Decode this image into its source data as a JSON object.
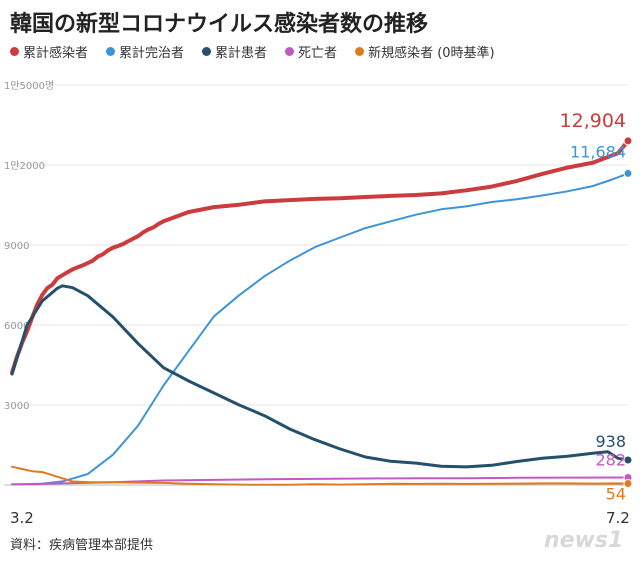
{
  "title": "韓国の新型コロナウイルス感染者数の推移",
  "legend": [
    {
      "label": "累計感染者",
      "color": "#cc3b3d"
    },
    {
      "label": "累計完治者",
      "color": "#3d95d6"
    },
    {
      "label": "累計患者",
      "color": "#24506b"
    },
    {
      "label": "死亡者",
      "color": "#c458c4"
    },
    {
      "label": "新規感染者 (0時基準)",
      "color": "#e07a1f"
    }
  ],
  "source": "資料：疾病管理本部提供",
  "watermark": "news1",
  "chart_data": {
    "type": "line",
    "x_start_label": "3.2",
    "x_end_label": "7.2",
    "ylim": [
      0,
      15000
    ],
    "y_ticks": [
      {
        "value": 15000,
        "label": "1만5000명"
      },
      {
        "value": 12000,
        "label": "1만2000"
      },
      {
        "value": 9000,
        "label": "9000"
      },
      {
        "value": 6000,
        "label": "6000"
      },
      {
        "value": 3000,
        "label": "3000"
      }
    ],
    "series": [
      {
        "name": "累計感染者",
        "color": "#cc3b3d",
        "width": 4,
        "end_label": "12,904",
        "points": [
          [
            0,
            4212
          ],
          [
            1,
            4812
          ],
          [
            2,
            5328
          ],
          [
            3,
            5766
          ],
          [
            4,
            6284
          ],
          [
            5,
            6767
          ],
          [
            6,
            7134
          ],
          [
            7,
            7382
          ],
          [
            8,
            7513
          ],
          [
            9,
            7755
          ],
          [
            10,
            7869
          ],
          [
            11,
            7979
          ],
          [
            12,
            8086
          ],
          [
            13,
            8162
          ],
          [
            14,
            8236
          ],
          [
            15,
            8320
          ],
          [
            16,
            8413
          ],
          [
            17,
            8565
          ],
          [
            18,
            8652
          ],
          [
            19,
            8799
          ],
          [
            20,
            8897
          ],
          [
            21,
            8961
          ],
          [
            22,
            9037
          ],
          [
            23,
            9137
          ],
          [
            24,
            9241
          ],
          [
            25,
            9332
          ],
          [
            26,
            9478
          ],
          [
            27,
            9583
          ],
          [
            28,
            9661
          ],
          [
            29,
            9786
          ],
          [
            30,
            9887
          ],
          [
            35,
            10237
          ],
          [
            40,
            10423
          ],
          [
            45,
            10512
          ],
          [
            50,
            10635
          ],
          [
            55,
            10683
          ],
          [
            60,
            10728
          ],
          [
            65,
            10752
          ],
          [
            70,
            10801
          ],
          [
            75,
            10840
          ],
          [
            80,
            10874
          ],
          [
            85,
            10936
          ],
          [
            90,
            11050
          ],
          [
            95,
            11190
          ],
          [
            100,
            11402
          ],
          [
            105,
            11668
          ],
          [
            110,
            11902
          ],
          [
            115,
            12085
          ],
          [
            120,
            12438
          ],
          [
            122,
            12904
          ]
        ]
      },
      {
        "name": "累計完治者",
        "color": "#3d95d6",
        "width": 2,
        "end_label": "11,684",
        "points": [
          [
            0,
            22
          ],
          [
            5,
            27
          ],
          [
            10,
            135
          ],
          [
            15,
            408
          ],
          [
            20,
            1137
          ],
          [
            25,
            2233
          ],
          [
            30,
            3730
          ],
          [
            35,
            5033
          ],
          [
            40,
            6325
          ],
          [
            45,
            7117
          ],
          [
            50,
            7829
          ],
          [
            55,
            8411
          ],
          [
            60,
            8922
          ],
          [
            65,
            9283
          ],
          [
            70,
            9632
          ],
          [
            75,
            9888
          ],
          [
            80,
            10135
          ],
          [
            85,
            10340
          ],
          [
            90,
            10446
          ],
          [
            95,
            10611
          ],
          [
            100,
            10718
          ],
          [
            105,
            10856
          ],
          [
            110,
            11012
          ],
          [
            115,
            11209
          ],
          [
            118,
            11400
          ],
          [
            120,
            11537
          ],
          [
            122,
            11684
          ]
        ]
      },
      {
        "name": "累計患者",
        "color": "#24506b",
        "width": 3,
        "end_label": "938",
        "points": [
          [
            0,
            4157
          ],
          [
            3,
            6000
          ],
          [
            6,
            6900
          ],
          [
            9,
            7380
          ],
          [
            10,
            7470
          ],
          [
            12,
            7400
          ],
          [
            15,
            7100
          ],
          [
            20,
            6300
          ],
          [
            25,
            5300
          ],
          [
            30,
            4400
          ],
          [
            35,
            3900
          ],
          [
            40,
            3450
          ],
          [
            45,
            3000
          ],
          [
            50,
            2600
          ],
          [
            55,
            2100
          ],
          [
            60,
            1700
          ],
          [
            65,
            1350
          ],
          [
            70,
            1050
          ],
          [
            75,
            890
          ],
          [
            80,
            820
          ],
          [
            85,
            700
          ],
          [
            90,
            680
          ],
          [
            95,
            740
          ],
          [
            100,
            880
          ],
          [
            105,
            1000
          ],
          [
            110,
            1080
          ],
          [
            115,
            1190
          ],
          [
            118,
            1250
          ],
          [
            120,
            1000
          ],
          [
            122,
            938
          ]
        ]
      },
      {
        "name": "死亡者",
        "color": "#c458c4",
        "width": 2,
        "end_label": "282",
        "points": [
          [
            0,
            22
          ],
          [
            10,
            60
          ],
          [
            20,
            100
          ],
          [
            30,
            169
          ],
          [
            40,
            192
          ],
          [
            50,
            214
          ],
          [
            60,
            230
          ],
          [
            70,
            244
          ],
          [
            80,
            250
          ],
          [
            90,
            256
          ],
          [
            100,
            269
          ],
          [
            110,
            276
          ],
          [
            122,
            282
          ]
        ]
      },
      {
        "name": "新規感染者",
        "color": "#e07a1f",
        "width": 2,
        "end_label": "54",
        "points": [
          [
            0,
            686
          ],
          [
            2,
            600
          ],
          [
            4,
            518
          ],
          [
            6,
            483
          ],
          [
            8,
            367
          ],
          [
            10,
            250
          ],
          [
            12,
            131
          ],
          [
            15,
            110
          ],
          [
            20,
            100
          ],
          [
            25,
            90
          ],
          [
            30,
            80
          ],
          [
            35,
            50
          ],
          [
            40,
            27
          ],
          [
            45,
            14
          ],
          [
            50,
            8
          ],
          [
            55,
            10
          ],
          [
            60,
            30
          ],
          [
            65,
            15
          ],
          [
            70,
            25
          ],
          [
            75,
            45
          ],
          [
            80,
            40
          ],
          [
            85,
            50
          ],
          [
            90,
            42
          ],
          [
            95,
            48
          ],
          [
            100,
            51
          ],
          [
            105,
            59
          ],
          [
            110,
            60
          ],
          [
            115,
            51
          ],
          [
            120,
            61
          ],
          [
            122,
            54
          ]
        ]
      }
    ]
  }
}
